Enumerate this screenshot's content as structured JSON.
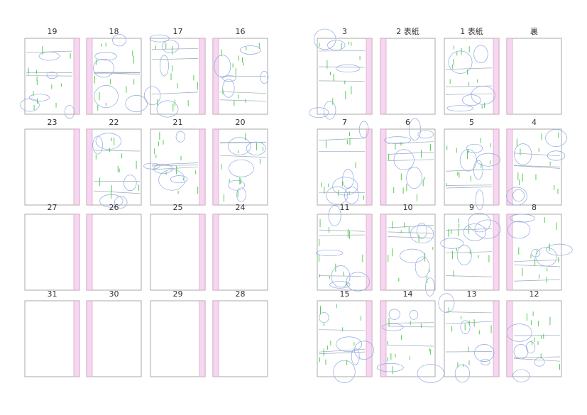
{
  "spreads": [
    {
      "rows": [
        [
          {
            "label": "19",
            "sketched": true
          },
          {
            "label": "18",
            "sketched": true
          },
          {
            "label": "17",
            "sketched": true
          },
          {
            "label": "16",
            "sketched": true
          }
        ],
        [
          {
            "label": "23",
            "sketched": false
          },
          {
            "label": "22",
            "sketched": true
          },
          {
            "label": "21",
            "sketched": true
          },
          {
            "label": "20",
            "sketched": true
          }
        ],
        [
          {
            "label": "27",
            "sketched": false
          },
          {
            "label": "26",
            "sketched": false
          },
          {
            "label": "25",
            "sketched": false
          },
          {
            "label": "24",
            "sketched": false
          }
        ],
        [
          {
            "label": "31",
            "sketched": false
          },
          {
            "label": "30",
            "sketched": false
          },
          {
            "label": "29",
            "sketched": false
          },
          {
            "label": "28",
            "sketched": false
          }
        ]
      ]
    },
    {
      "rows": [
        [
          {
            "label": "3",
            "sketched": true
          },
          {
            "label": "2 表紙",
            "sketched": false
          },
          {
            "label": "1 表紙",
            "sketched": true
          },
          {
            "label": "裏",
            "sketched": false
          }
        ],
        [
          {
            "label": "7",
            "sketched": true
          },
          {
            "label": "6",
            "sketched": true
          },
          {
            "label": "5",
            "sketched": true
          },
          {
            "label": "4",
            "sketched": true
          }
        ],
        [
          {
            "label": "11",
            "sketched": true
          },
          {
            "label": "10",
            "sketched": true
          },
          {
            "label": "9",
            "sketched": true
          },
          {
            "label": "8",
            "sketched": true
          }
        ],
        [
          {
            "label": "15",
            "sketched": true
          },
          {
            "label": "14",
            "sketched": true
          },
          {
            "label": "13",
            "sketched": true
          },
          {
            "label": "12",
            "sketched": true
          }
        ]
      ]
    }
  ]
}
